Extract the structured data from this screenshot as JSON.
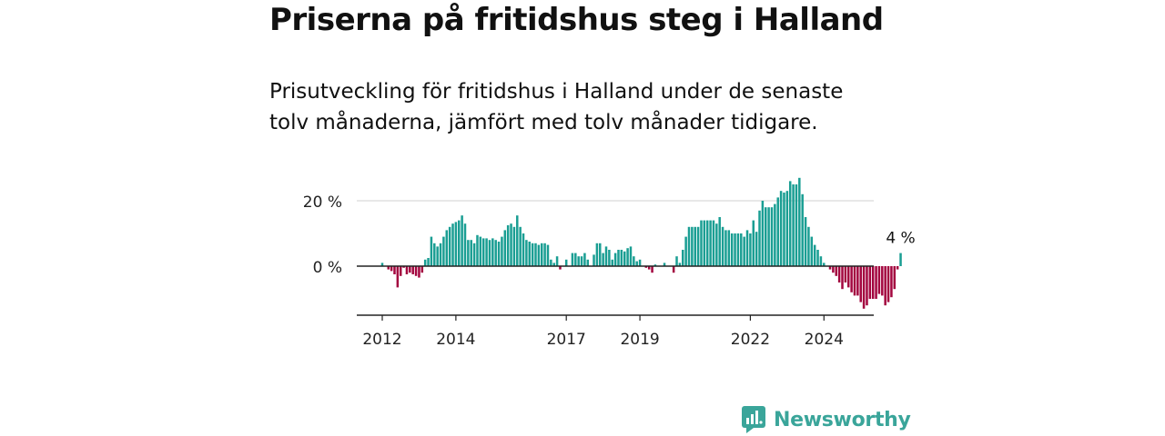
{
  "title": "Priserna på fritidshus steg i Halland",
  "subtitle": "Prisutveckling för fritidshus i Halland under de senaste tolv månaderna, jämfört med tolv månader tidigare.",
  "brand": {
    "name": "Newsworthy",
    "icon": "newsworthy-logo-icon"
  },
  "colors": {
    "positive": "#1a9e93",
    "negative": "#a3063f",
    "grid": "#d9d9d9",
    "axis": "#222222",
    "brand": "#3aa59a"
  },
  "chart_data": {
    "type": "bar",
    "unit": "%",
    "x_start": "2012-01",
    "frequency": "monthly",
    "ylim": [
      -15,
      28
    ],
    "y_ticks": [
      {
        "value": 0,
        "label": "0 %"
      },
      {
        "value": 20,
        "label": "20 %"
      }
    ],
    "x_ticks": [
      {
        "year": 2012,
        "label": "2012"
      },
      {
        "year": 2014,
        "label": "2014"
      },
      {
        "year": 2017,
        "label": "2017"
      },
      {
        "year": 2019,
        "label": "2019"
      },
      {
        "year": 2022,
        "label": "2022"
      },
      {
        "year": 2024,
        "label": "2024"
      }
    ],
    "last_value_label": "4 %",
    "grid": true,
    "legend": "none",
    "values": [
      1,
      0,
      -1,
      -1.5,
      -2.5,
      -6.5,
      -3,
      -0.5,
      -2.5,
      -2,
      -2.5,
      -3,
      -3.5,
      -2,
      2,
      2.5,
      9,
      7,
      6,
      7,
      9,
      11,
      12,
      13,
      13.5,
      14,
      15.5,
      13,
      8,
      8,
      7,
      9.5,
      9,
      8.5,
      8.5,
      8,
      8.5,
      8,
      7.5,
      9,
      11,
      12.5,
      13,
      12,
      15.5,
      12,
      10,
      8,
      7.5,
      7,
      7,
      6.5,
      7,
      7,
      6.5,
      2,
      1,
      3,
      -1,
      0,
      2,
      0,
      4,
      4,
      3,
      3,
      4,
      2,
      0,
      3.5,
      7,
      7,
      4,
      6,
      5,
      2,
      4,
      5,
      5,
      4.5,
      5.5,
      6,
      3,
      1.5,
      2,
      0,
      -0.5,
      -1,
      -2,
      0.5,
      0,
      0,
      1,
      0,
      0,
      -2,
      3,
      1,
      5,
      9,
      12,
      12,
      12,
      12,
      14,
      14,
      14,
      14,
      14,
      13,
      15,
      12,
      11,
      11,
      10,
      10,
      10,
      10,
      9,
      11,
      10,
      14,
      10.5,
      17,
      20,
      18,
      18,
      18,
      19,
      21,
      23,
      22.5,
      23,
      26,
      25,
      25,
      27,
      22,
      15,
      12,
      9,
      6.5,
      5,
      3,
      1,
      0,
      -1,
      -2,
      -3,
      -5,
      -7,
      -5,
      -6.5,
      -8,
      -9,
      -9,
      -11,
      -13,
      -12,
      -10,
      -10,
      -10,
      -8.5,
      -9,
      -12,
      -11,
      -9.5,
      -7,
      -1,
      4
    ]
  }
}
